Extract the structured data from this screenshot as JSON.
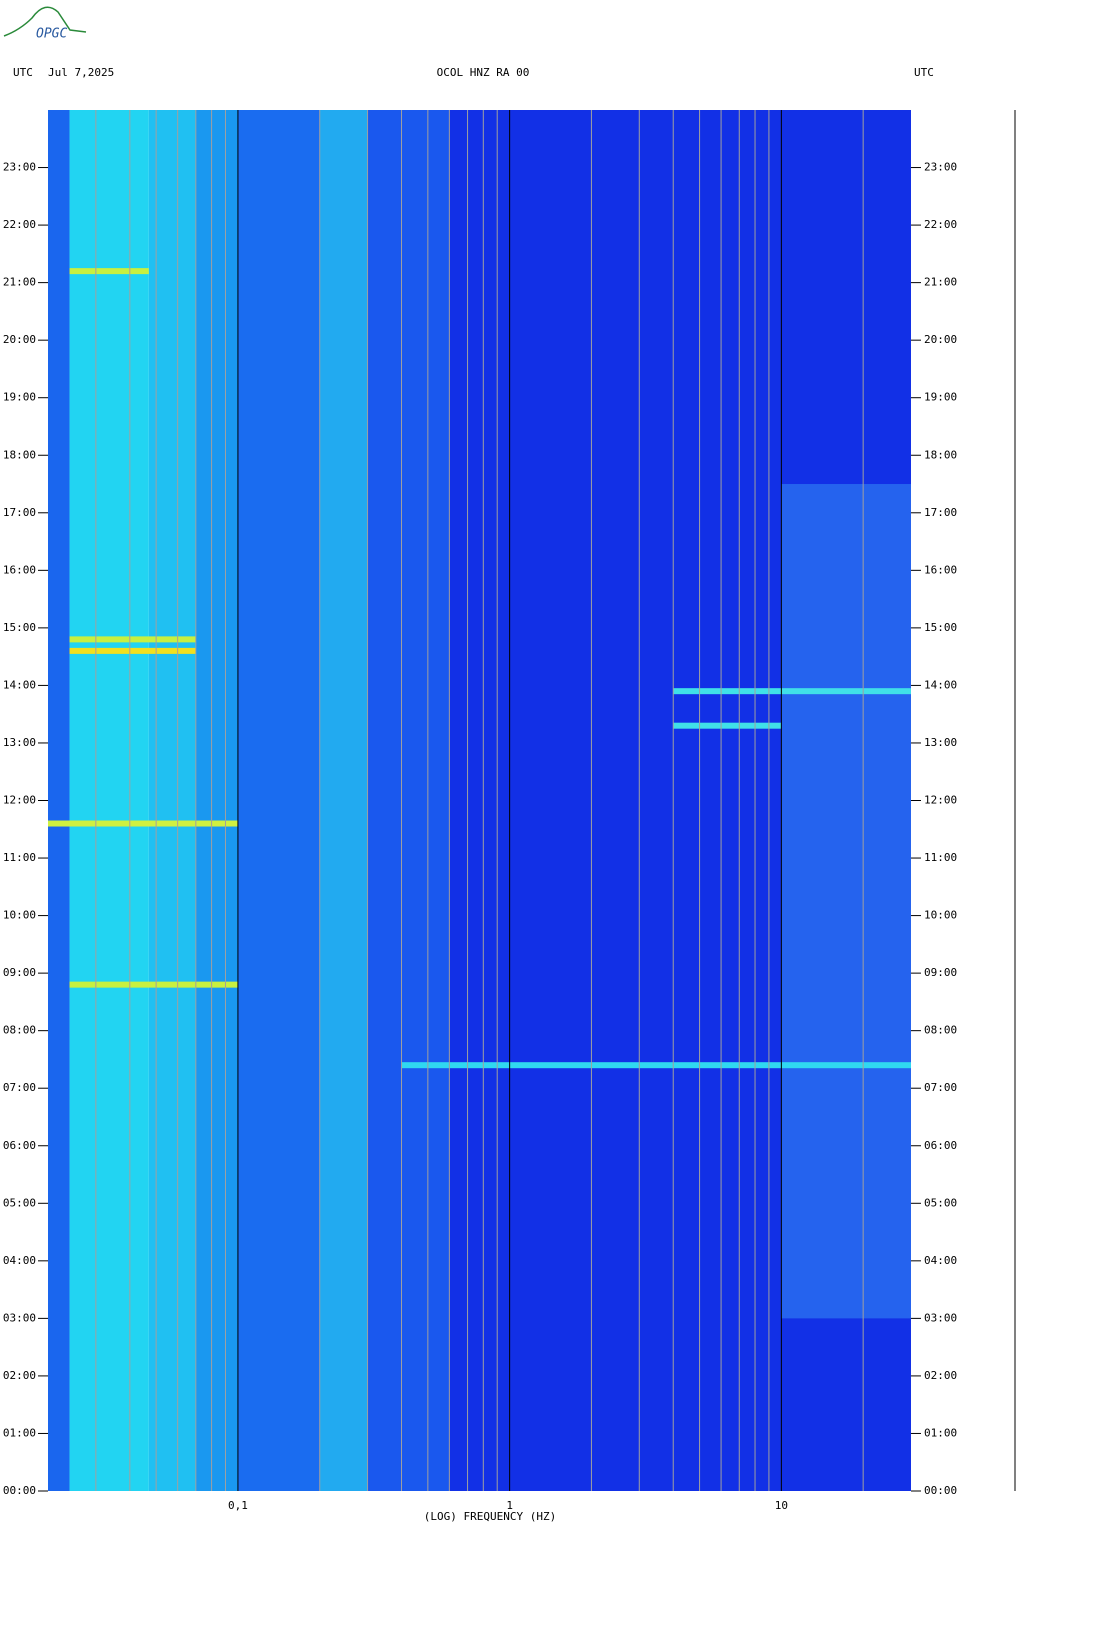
{
  "logo": "OPGC",
  "chart_data": {
    "type": "spectrogram",
    "title": "OCOL HNZ RA 00",
    "date_label": "Jul 7,2025",
    "left_axis_label": "UTC",
    "right_axis_label": "UTC",
    "x_label": "(LOG) FREQUENCY (HZ)",
    "xscale": "log",
    "xlim": [
      0.02,
      30
    ],
    "xticks": [
      {
        "value": 0.1,
        "label": "0,1"
      },
      1,
      10
    ],
    "xgrid": [
      0.03,
      0.04,
      0.05,
      0.06,
      0.07,
      0.08,
      0.09,
      0.2,
      0.3,
      0.4,
      0.5,
      0.6,
      0.7,
      0.8,
      0.9,
      2,
      3,
      4,
      5,
      6,
      7,
      8,
      9,
      20
    ],
    "grid_color": "#a0a0a0",
    "decade_color": "#000000",
    "ylim": [
      0,
      24
    ],
    "yticks": [
      {
        "value": 0,
        "label": "00:00"
      },
      {
        "value": 1,
        "label": "01:00"
      },
      {
        "value": 2,
        "label": "02:00"
      },
      {
        "value": 3,
        "label": "03:00"
      },
      {
        "value": 4,
        "label": "04:00"
      },
      {
        "value": 5,
        "label": "05:00"
      },
      {
        "value": 6,
        "label": "06:00"
      },
      {
        "value": 7,
        "label": "07:00"
      },
      {
        "value": 8,
        "label": "08:00"
      },
      {
        "value": 9,
        "label": "09:00"
      },
      {
        "value": 10,
        "label": "10:00"
      },
      {
        "value": 11,
        "label": "11:00"
      },
      {
        "value": 12,
        "label": "12:00"
      },
      {
        "value": 13,
        "label": "13:00"
      },
      {
        "value": 14,
        "label": "14:00"
      },
      {
        "value": 15,
        "label": "15:00"
      },
      {
        "value": 16,
        "label": "16:00"
      },
      {
        "value": 17,
        "label": "17:00"
      },
      {
        "value": 18,
        "label": "18:00"
      },
      {
        "value": 19,
        "label": "19:00"
      },
      {
        "value": 20,
        "label": "20:00"
      },
      {
        "value": 21,
        "label": "21:00"
      },
      {
        "value": 22,
        "label": "22:00"
      },
      {
        "value": 23,
        "label": "23:00"
      }
    ],
    "bands": [
      {
        "from": 0.02,
        "to": 0.024,
        "color": "#1a66ee"
      },
      {
        "from": 0.024,
        "to": 0.047,
        "color": "#22d4f2"
      },
      {
        "from": 0.047,
        "to": 0.07,
        "color": "#20c0f2"
      },
      {
        "from": 0.07,
        "to": 0.1,
        "color": "#1a98f0"
      },
      {
        "from": 0.1,
        "to": 0.2,
        "color": "#1a6cf0"
      },
      {
        "from": 0.2,
        "to": 0.3,
        "color": "#22aaf0"
      },
      {
        "from": 0.3,
        "to": 0.6,
        "color": "#1a58ee"
      },
      {
        "from": 0.6,
        "to": 30,
        "color": "#1230e6"
      }
    ],
    "activity": {
      "from": 10,
      "to": 30,
      "start": 3,
      "end": 17.5,
      "color": "#2a70f0"
    },
    "events": [
      {
        "time": 14.6,
        "from": 0.024,
        "to": 0.07,
        "color": "#f0e020"
      },
      {
        "time": 14.8,
        "from": 0.024,
        "to": 0.07,
        "color": "#c8f040"
      },
      {
        "time": 11.6,
        "from": 0.02,
        "to": 0.1,
        "color": "#d0f040"
      },
      {
        "time": 8.8,
        "from": 0.024,
        "to": 0.1,
        "color": "#c8f040"
      },
      {
        "time": 21.2,
        "from": 0.024,
        "to": 0.047,
        "color": "#c8f040"
      },
      {
        "time": 7.4,
        "from": 0.4,
        "to": 30,
        "color": "#30d8f0"
      },
      {
        "time": 13.9,
        "from": 4,
        "to": 30,
        "color": "#40e0e8"
      },
      {
        "time": 13.3,
        "from": 4,
        "to": 10,
        "color": "#40e0e8"
      }
    ]
  }
}
